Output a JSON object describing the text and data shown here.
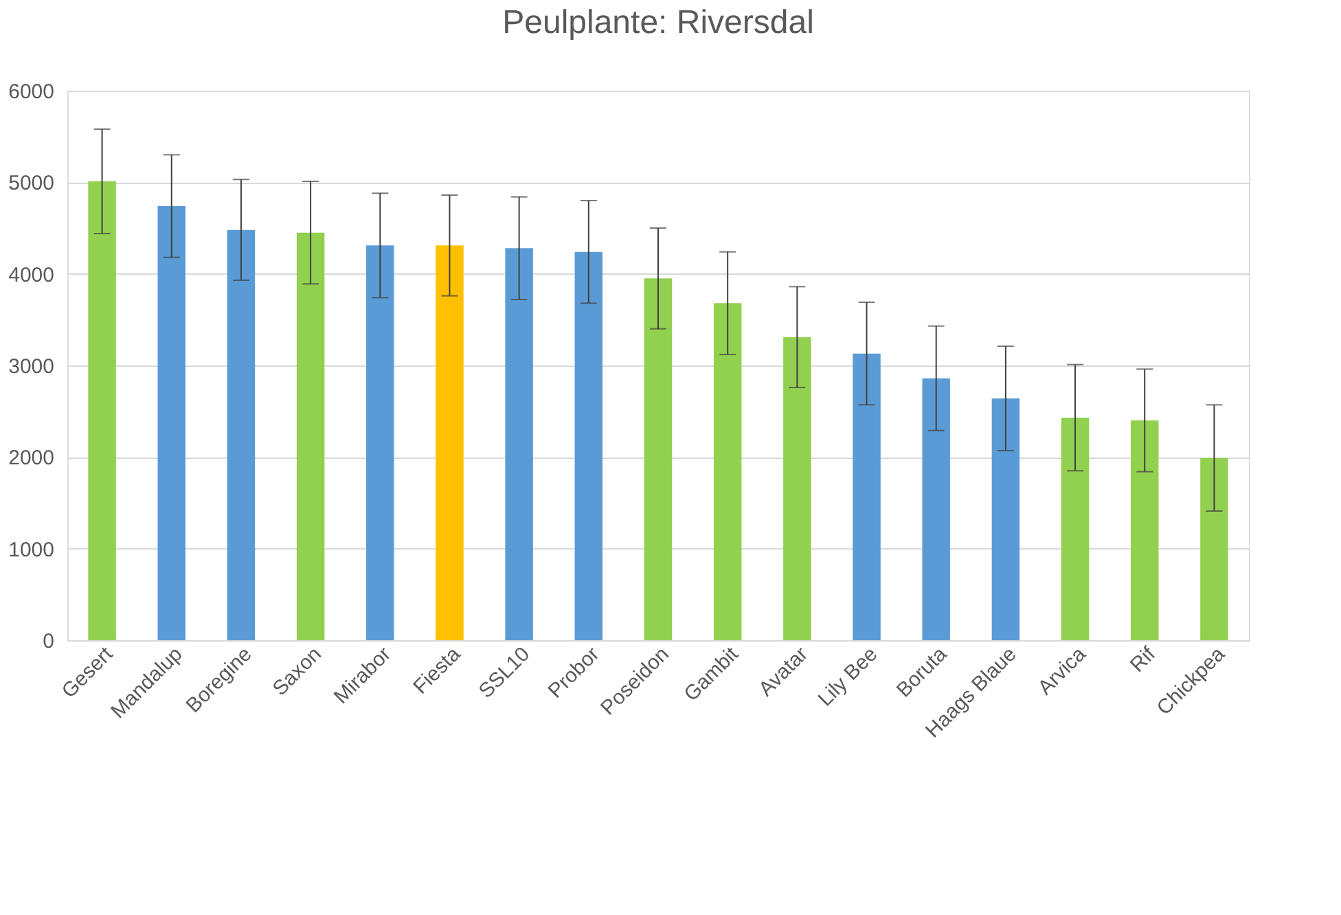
{
  "chart_data": {
    "type": "bar",
    "title": "Peulplante: Riversdal",
    "categories": [
      "Gesert",
      "Mandalup",
      "Boregine",
      "Saxon",
      "Mirabor",
      "Fiesta",
      "SSL10",
      "Probor",
      "Poseidon",
      "Gambit",
      "Avatar",
      "Lily Bee",
      "Boruta",
      "Haags Blaue",
      "Arvica",
      "Rif",
      "Chickpea"
    ],
    "values": [
      5010,
      4740,
      4480,
      4450,
      4310,
      4310,
      4280,
      4240,
      3950,
      3680,
      3310,
      3130,
      2860,
      2640,
      2430,
      2400,
      1990
    ],
    "errors": [
      570,
      560,
      550,
      560,
      570,
      550,
      560,
      560,
      550,
      560,
      550,
      560,
      570,
      570,
      580,
      560,
      580
    ],
    "colors": [
      "#92d050",
      "#5b9bd5",
      "#5b9bd5",
      "#92d050",
      "#5b9bd5",
      "#ffc000",
      "#5b9bd5",
      "#5b9bd5",
      "#92d050",
      "#92d050",
      "#92d050",
      "#5b9bd5",
      "#5b9bd5",
      "#5b9bd5",
      "#92d050",
      "#92d050",
      "#92d050"
    ],
    "ylim": [
      0,
      6000
    ],
    "yticks": [
      0,
      1000,
      2000,
      3000,
      4000,
      5000,
      6000
    ],
    "grid": "y",
    "legend": false
  }
}
